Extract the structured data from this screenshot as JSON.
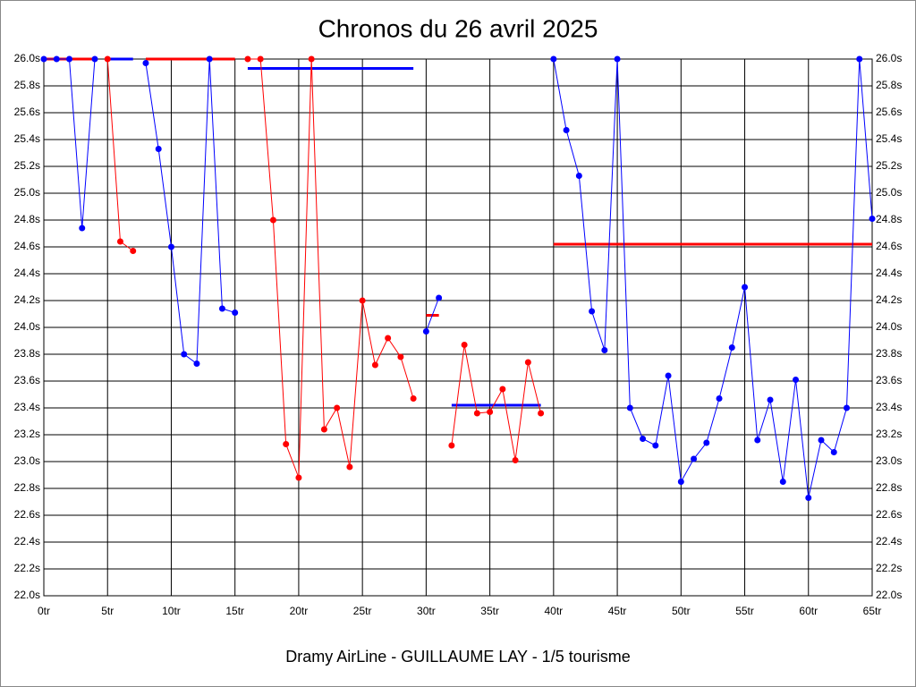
{
  "chart_data": {
    "type": "line",
    "title": "Chronos du 26 avril 2025",
    "xlabel": "Dramy AirLine - GUILLAUME LAY - 1/5 tourisme",
    "x": [
      0,
      1,
      2,
      3,
      4,
      5,
      6,
      7,
      8,
      9,
      10,
      11,
      12,
      13,
      14,
      15,
      16,
      17,
      18,
      19,
      20,
      21,
      22,
      23,
      24,
      25,
      26,
      27,
      28,
      29,
      30,
      31,
      32,
      33,
      34,
      35,
      36,
      37,
      38,
      39,
      40,
      41,
      42,
      43,
      44,
      45,
      46,
      47,
      48,
      49,
      50,
      51,
      52,
      53,
      54,
      55,
      56,
      57,
      58,
      59,
      60,
      61,
      62,
      63,
      64,
      65
    ],
    "series": [
      {
        "color": "#0000ff",
        "values": [
          26,
          26,
          26,
          24.74,
          26,
          null,
          null,
          null,
          25.97,
          25.33,
          24.6,
          23.8,
          23.73,
          26,
          24.14,
          24.11,
          null,
          null,
          null,
          null,
          null,
          null,
          null,
          null,
          null,
          null,
          null,
          null,
          null,
          null,
          23.97,
          24.22,
          null,
          null,
          null,
          null,
          null,
          null,
          null,
          null,
          26,
          25.47,
          25.13,
          24.12,
          23.83,
          26,
          23.4,
          23.17,
          23.12,
          23.64,
          22.85,
          23.02,
          23.14,
          23.47,
          23.85,
          24.3,
          23.16,
          23.46,
          22.85,
          23.61,
          22.73,
          23.16,
          23.07,
          23.4,
          26,
          24.81
        ]
      },
      {
        "color": "#ff0000",
        "values": [
          null,
          null,
          null,
          null,
          null,
          26,
          24.64,
          24.57,
          null,
          null,
          null,
          null,
          null,
          null,
          null,
          null,
          26,
          26,
          24.8,
          23.13,
          22.88,
          26,
          23.24,
          23.4,
          22.96,
          24.2,
          23.72,
          23.92,
          23.78,
          23.47,
          null,
          null,
          23.12,
          23.87,
          23.36,
          23.37,
          23.54,
          23.01,
          23.74,
          23.36,
          null,
          null,
          null,
          null,
          null,
          null,
          null,
          null,
          null,
          null,
          null,
          null,
          null,
          null,
          null,
          null,
          null,
          null,
          null,
          null,
          null,
          null,
          null,
          null,
          null,
          null
        ]
      }
    ],
    "averages": [
      {
        "color": "#ff0000",
        "value": 26.0,
        "from": 0,
        "to": 4
      },
      {
        "color": "#0000ff",
        "value": 26.0,
        "from": 5,
        "to": 7
      },
      {
        "color": "#ff0000",
        "value": 26.0,
        "from": 8,
        "to": 15
      },
      {
        "color": "#0000ff",
        "value": 25.93,
        "from": 16,
        "to": 29
      },
      {
        "color": "#ff0000",
        "value": 24.09,
        "from": 30,
        "to": 31
      },
      {
        "color": "#0000ff",
        "value": 23.42,
        "from": 32,
        "to": 39
      },
      {
        "color": "#ff0000",
        "value": 24.62,
        "from": 40,
        "to": 65
      }
    ],
    "xlim": [
      0,
      65
    ],
    "xticks": [
      {
        "value": 0,
        "label": "0tr"
      },
      {
        "value": 5,
        "label": "5tr"
      },
      {
        "value": 10,
        "label": "10tr"
      },
      {
        "value": 15,
        "label": "15tr"
      },
      {
        "value": 20,
        "label": "20tr"
      },
      {
        "value": 25,
        "label": "25tr"
      },
      {
        "value": 30,
        "label": "30tr"
      },
      {
        "value": 35,
        "label": "35tr"
      },
      {
        "value": 40,
        "label": "40tr"
      },
      {
        "value": 45,
        "label": "45tr"
      },
      {
        "value": 50,
        "label": "50tr"
      },
      {
        "value": 55,
        "label": "55tr"
      },
      {
        "value": 60,
        "label": "60tr"
      },
      {
        "value": 65,
        "label": "65tr"
      }
    ],
    "ylim": [
      22.0,
      26.0
    ],
    "yticks": [
      {
        "value": 22.0,
        "label": "22.0s"
      },
      {
        "value": 22.2,
        "label": "22.2s"
      },
      {
        "value": 22.4,
        "label": "22.4s"
      },
      {
        "value": 22.6,
        "label": "22.6s"
      },
      {
        "value": 22.8,
        "label": "22.8s"
      },
      {
        "value": 23.0,
        "label": "23.0s"
      },
      {
        "value": 23.2,
        "label": "23.2s"
      },
      {
        "value": 23.4,
        "label": "23.4s"
      },
      {
        "value": 23.6,
        "label": "23.6s"
      },
      {
        "value": 23.8,
        "label": "23.8s"
      },
      {
        "value": 24.0,
        "label": "24.0s"
      },
      {
        "value": 24.2,
        "label": "24.2s"
      },
      {
        "value": 24.4,
        "label": "24.4s"
      },
      {
        "value": 24.6,
        "label": "24.6s"
      },
      {
        "value": 24.8,
        "label": "24.8s"
      },
      {
        "value": 25.0,
        "label": "25.0s"
      },
      {
        "value": 25.2,
        "label": "25.2s"
      },
      {
        "value": 25.4,
        "label": "25.4s"
      },
      {
        "value": 25.6,
        "label": "25.6s"
      },
      {
        "value": 25.8,
        "label": "25.8s"
      },
      {
        "value": 26.0,
        "label": "26.0s"
      }
    ],
    "grid": true
  }
}
